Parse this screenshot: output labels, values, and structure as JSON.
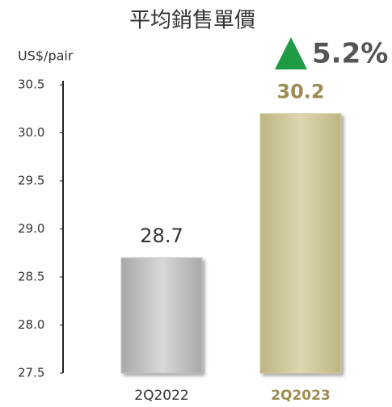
{
  "chart_data": {
    "type": "bar",
    "title": "平均銷售單價",
    "y_label": "US$/pair",
    "categories": [
      "2Q2022",
      "2Q2023"
    ],
    "values": [
      28.7,
      30.2
    ],
    "colors": [
      "#c4c4c4",
      "#d5cfa3"
    ],
    "label_colors": [
      "#333333",
      "#9c8c52"
    ],
    "annotation": {
      "text": "5.2%",
      "color": "#1f9a45"
    },
    "ylim": [
      27.5,
      30.5
    ],
    "yticks": [
      27.5,
      {
        "value": 28,
        "label": "28.0"
      },
      28.5,
      {
        "value": 29,
        "label": "29.0"
      },
      29.5,
      {
        "value": 30,
        "label": "30.0"
      },
      30.5
    ],
    "grid": false
  }
}
